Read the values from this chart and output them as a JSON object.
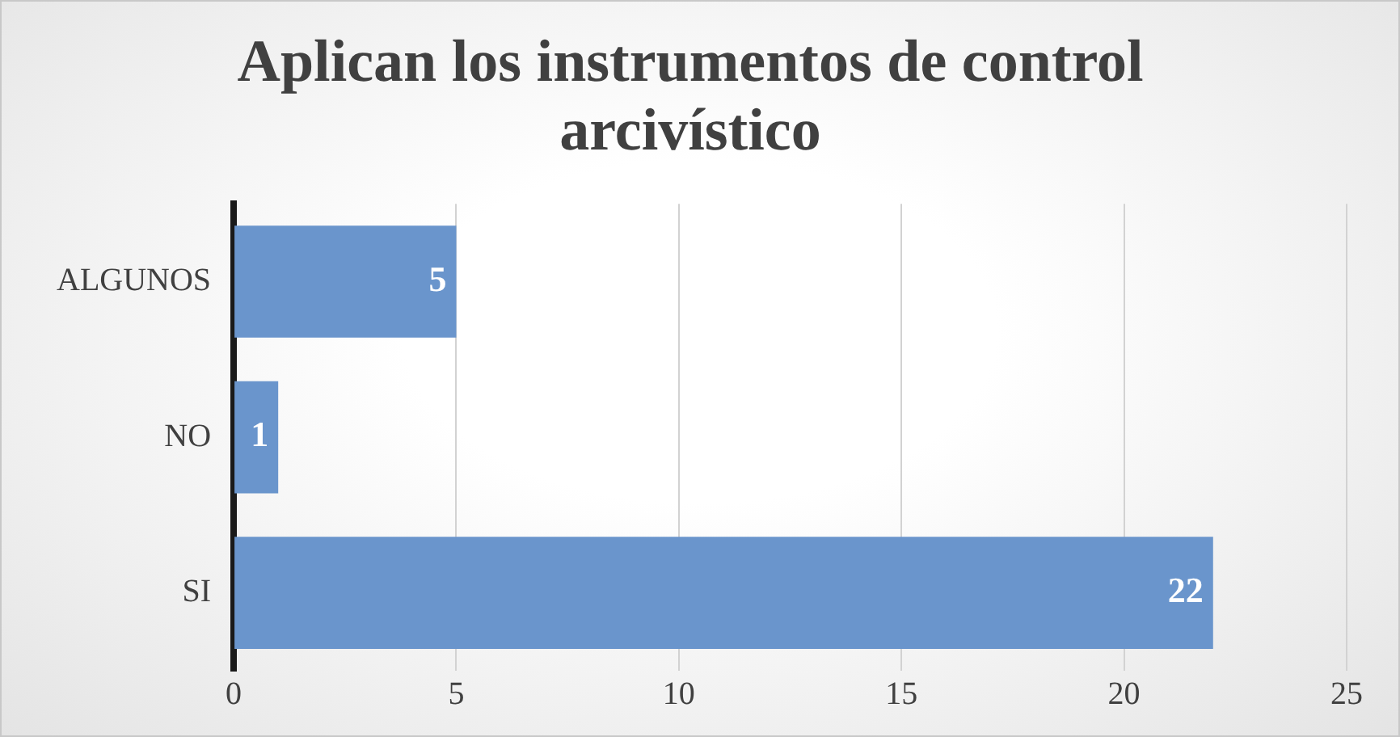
{
  "chart_data": {
    "type": "bar",
    "orientation": "horizontal",
    "title": "Aplican los instrumentos de control arcivístico",
    "categories": [
      "ALGUNOS",
      "NO",
      "SI"
    ],
    "values": [
      5,
      1,
      22
    ],
    "color": "#6a95cc",
    "xlim": [
      0,
      25
    ],
    "xticks": [
      0,
      5,
      10,
      15,
      20,
      25
    ],
    "grid": "x",
    "legend": false,
    "data_labels": true
  }
}
